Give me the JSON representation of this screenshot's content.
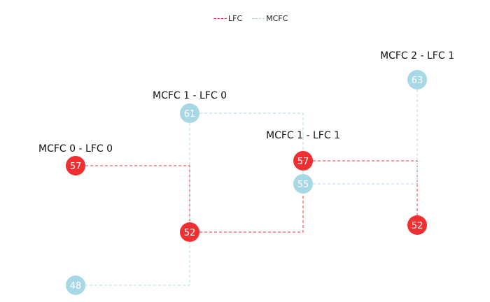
{
  "colors": {
    "lfc": "#f03030",
    "mcfc": "#a8d8e6"
  },
  "legend": {
    "lfc_label": "LFC",
    "mcfc_label": "MCFC"
  },
  "group_labels": [
    "MCFC 0 - LFC 0",
    "MCFC 1 - LFC 0",
    "MCFC 1 - LFC 1",
    "MCFC 2 - LFC 1"
  ],
  "nodes": [
    {
      "value": "57",
      "team": "lfc"
    },
    {
      "value": "61",
      "team": "mcfc"
    },
    {
      "value": "52",
      "team": "lfc"
    },
    {
      "value": "48",
      "team": "mcfc"
    },
    {
      "value": "57",
      "team": "lfc"
    },
    {
      "value": "55",
      "team": "mcfc"
    },
    {
      "value": "63",
      "team": "mcfc"
    },
    {
      "value": "52",
      "team": "lfc"
    }
  ]
}
